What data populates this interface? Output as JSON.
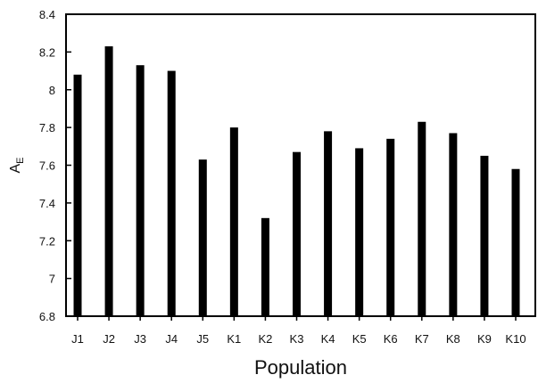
{
  "chart_data": {
    "type": "bar",
    "categories": [
      "J1",
      "J2",
      "J3",
      "J4",
      "J5",
      "K1",
      "K2",
      "K3",
      "K4",
      "K5",
      "K6",
      "K7",
      "K8",
      "K9",
      "K10"
    ],
    "values": [
      8.08,
      8.23,
      8.13,
      8.1,
      7.63,
      7.8,
      7.32,
      7.67,
      7.78,
      7.69,
      7.74,
      7.83,
      7.77,
      7.65,
      7.58
    ],
    "title": "",
    "xlabel": "Population",
    "ylabel": "A",
    "ylabel_subscript": "E",
    "ylim": [
      6.8,
      8.4
    ],
    "yticks": [
      "6.8",
      "7",
      "7.2",
      "7.4",
      "7.6",
      "7.8",
      "8",
      "8.2",
      "8.4"
    ],
    "grid": false,
    "bar_color": "#000000"
  }
}
